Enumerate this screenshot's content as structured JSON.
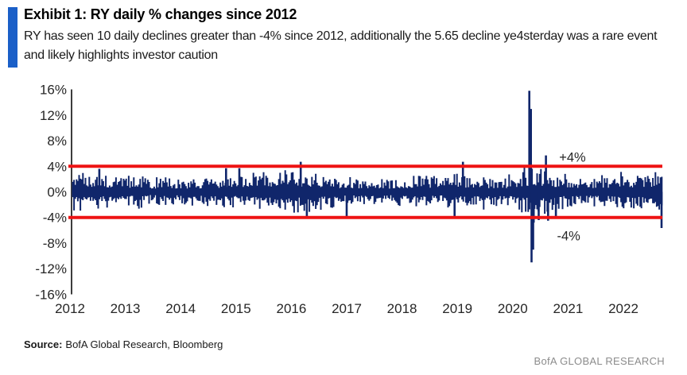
{
  "header": {
    "exhibit_title": "Exhibit 1: RY daily % changes since 2012",
    "subtitle": "RY has seen 10 daily declines greater than -4% since 2012, additionally the 5.65 decline ye4sterday was a rare event and likely highlights investor caution",
    "accent_color": "#1a5fc8"
  },
  "footer": {
    "source_label": "Source:",
    "source_text": "BofA Global Research, Bloomberg",
    "brand_text": "BofA GLOBAL RESEARCH"
  },
  "chart_data": {
    "type": "bar",
    "title": "RY daily % changes since 2012",
    "series_name": "RY daily % change",
    "xlabel": "",
    "ylabel": "",
    "grid": false,
    "legend": "none",
    "x_ticks": [
      2012,
      2013,
      2014,
      2015,
      2016,
      2017,
      2018,
      2019,
      2020,
      2021,
      2022
    ],
    "x_start": 2012,
    "x_end": 2022.72,
    "ylim": [
      -16,
      16
    ],
    "y_tick_step": 4,
    "y_tick_labels": [
      "16%",
      "12%",
      "8%",
      "4%",
      "0%",
      "-4%",
      "-8%",
      "-12%",
      "-16%"
    ],
    "series_color": "#10266b",
    "axis_color": "#3d3d3d",
    "tick_label_color": "#262626",
    "thresholds": [
      {
        "value": 4,
        "label": "+4%",
        "color": "#ee1313",
        "label_x_year": 2020.84
      },
      {
        "value": -4,
        "label": "-4%",
        "color": "#ee1313",
        "label_x_year": 2020.8
      }
    ],
    "volatility_profile": [
      [
        2012.0,
        2.7
      ],
      [
        2012.6,
        2.3
      ],
      [
        2013.0,
        2.15
      ],
      [
        2013.5,
        2.0
      ],
      [
        2014.0,
        1.95
      ],
      [
        2014.6,
        2.1
      ],
      [
        2015.0,
        2.45
      ],
      [
        2015.5,
        2.5
      ],
      [
        2015.9,
        2.7
      ],
      [
        2016.05,
        3.0
      ],
      [
        2016.35,
        2.6
      ],
      [
        2016.8,
        2.05
      ],
      [
        2017.2,
        1.7
      ],
      [
        2017.7,
        1.75
      ],
      [
        2018.0,
        2.05
      ],
      [
        2018.7,
        2.3
      ],
      [
        2018.95,
        2.6
      ],
      [
        2019.2,
        2.2
      ],
      [
        2019.6,
        1.85
      ],
      [
        2019.95,
        2.0
      ],
      [
        2020.2,
        2.9
      ],
      [
        2020.35,
        3.5
      ],
      [
        2020.6,
        3.0
      ],
      [
        2020.85,
        2.5
      ],
      [
        2021.1,
        2.05
      ],
      [
        2021.5,
        1.85
      ],
      [
        2021.85,
        2.0
      ],
      [
        2022.1,
        2.3
      ],
      [
        2022.45,
        2.6
      ],
      [
        2022.72,
        2.7
      ]
    ],
    "notable_points": [
      {
        "x": 2012.53,
        "v": 3.6
      },
      {
        "x": 2014.82,
        "v": 3.7
      },
      {
        "x": 2015.06,
        "v": 3.7
      },
      {
        "x": 2016.17,
        "v": 4.7
      },
      {
        "x": 2016.28,
        "v": -3.85
      },
      {
        "x": 2017.0,
        "v": -3.85
      },
      {
        "x": 2018.95,
        "v": -3.9
      },
      {
        "x": 2019.1,
        "v": 4.7
      },
      {
        "x": 2020.3,
        "v": 15.8
      },
      {
        "x": 2020.34,
        "v": -11.0
      },
      {
        "x": 2020.38,
        "v": -4.8
      },
      {
        "x": 2020.47,
        "v": -4.4
      },
      {
        "x": 2020.6,
        "v": 5.7
      },
      {
        "x": 2020.64,
        "v": -4.5
      },
      {
        "x": 2020.78,
        "v": -4.2
      },
      {
        "x": 2022.69,
        "v": -5.65
      }
    ],
    "stats": {
      "declines_below_minus_4_pct_since_2012": 10,
      "latest_daily_decline_pct": -5.65
    },
    "render_seed": 20120612
  }
}
